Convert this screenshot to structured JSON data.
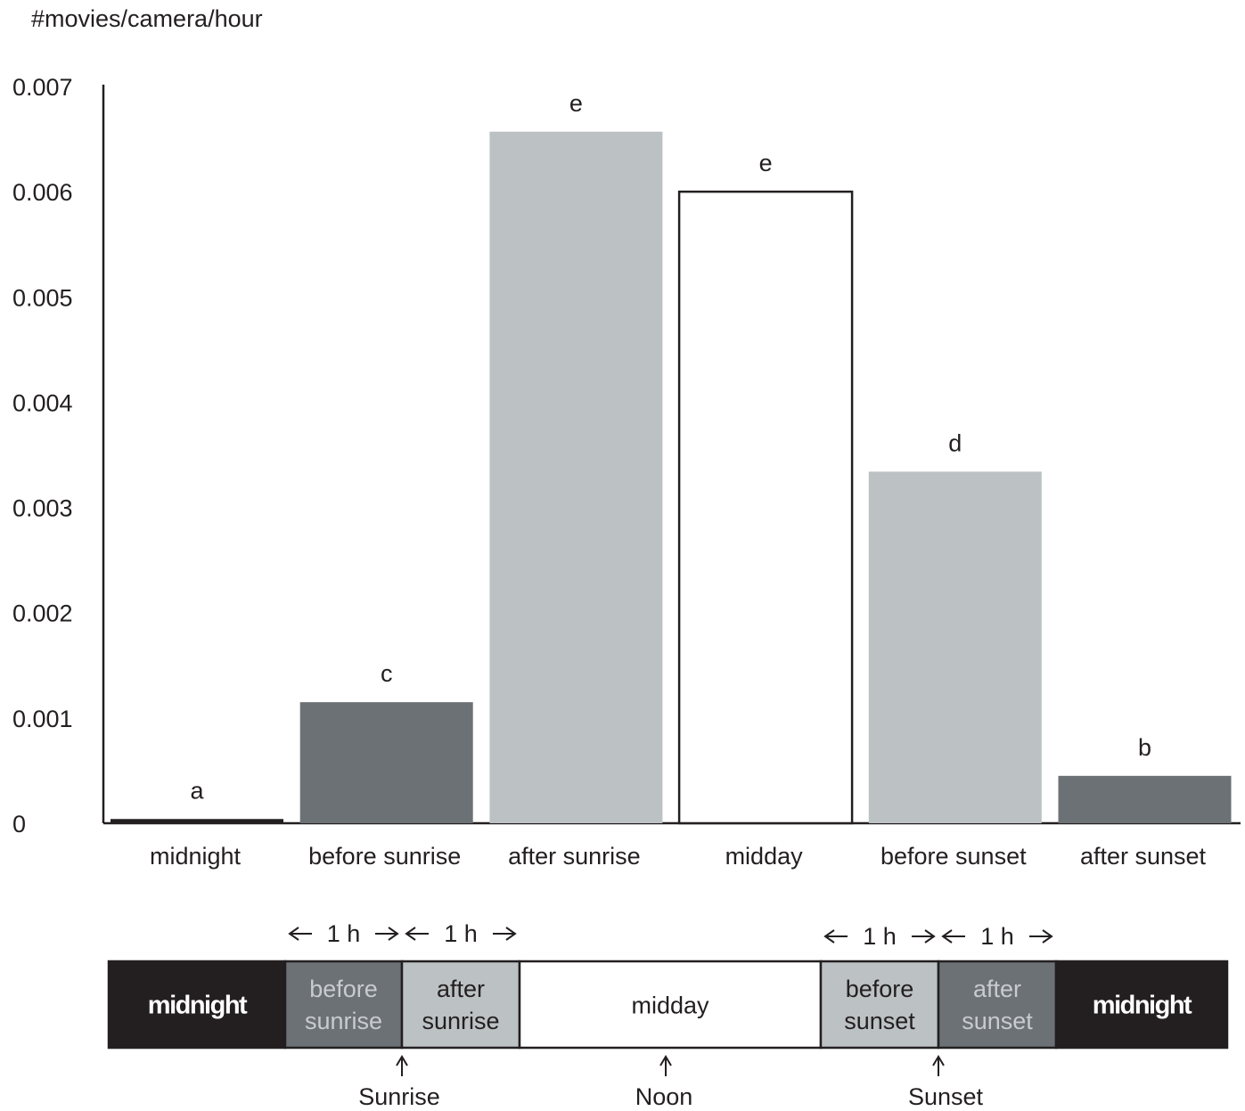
{
  "chart_data": {
    "type": "bar",
    "ylabel": "#movies/camera/hour",
    "xlabel": "",
    "ylim": [
      0,
      0.007
    ],
    "yticks": [
      "0",
      "0.001",
      "0.002",
      "0.003",
      "0.004",
      "0.005",
      "0.006",
      "0.007"
    ],
    "categories": [
      "midnight",
      "before sunrise",
      "after sunrise",
      "midday",
      "before sunset",
      "after sunset"
    ],
    "values": [
      4e-05,
      0.00115,
      0.00657,
      0.006,
      0.00334,
      0.00045
    ],
    "significance_letters": [
      "a",
      "c",
      "e",
      "e",
      "d",
      "b"
    ],
    "colors": [
      "#231f20",
      "#6b7174",
      "#bcc1c4",
      "#ffffff",
      "#bcc1c4",
      "#6b7174"
    ],
    "grid": false,
    "legend": "none"
  },
  "timeline": {
    "segments": [
      {
        "lines": [
          "midnight"
        ],
        "fill": "#231f20",
        "text_color": "#ffffff",
        "bold": true
      },
      {
        "lines": [
          "before",
          "sunrise"
        ],
        "fill": "#6b7174",
        "text_color": "#c8cccf",
        "bold": false
      },
      {
        "lines": [
          "after",
          "sunrise"
        ],
        "fill": "#bcc1c4",
        "text_color": "#231f20",
        "bold": false
      },
      {
        "lines": [
          "midday"
        ],
        "fill": "#ffffff",
        "text_color": "#231f20",
        "bold": false
      },
      {
        "lines": [
          "before",
          "sunset"
        ],
        "fill": "#bcc1c4",
        "text_color": "#231f20",
        "bold": false
      },
      {
        "lines": [
          "after",
          "sunset"
        ],
        "fill": "#6b7174",
        "text_color": "#c8cccf",
        "bold": false
      },
      {
        "lines": [
          "midnight"
        ],
        "fill": "#231f20",
        "text_color": "#ffffff",
        "bold": true
      }
    ],
    "span_label": "1 h",
    "events": [
      "Sunrise",
      "Noon",
      "Sunset"
    ]
  }
}
